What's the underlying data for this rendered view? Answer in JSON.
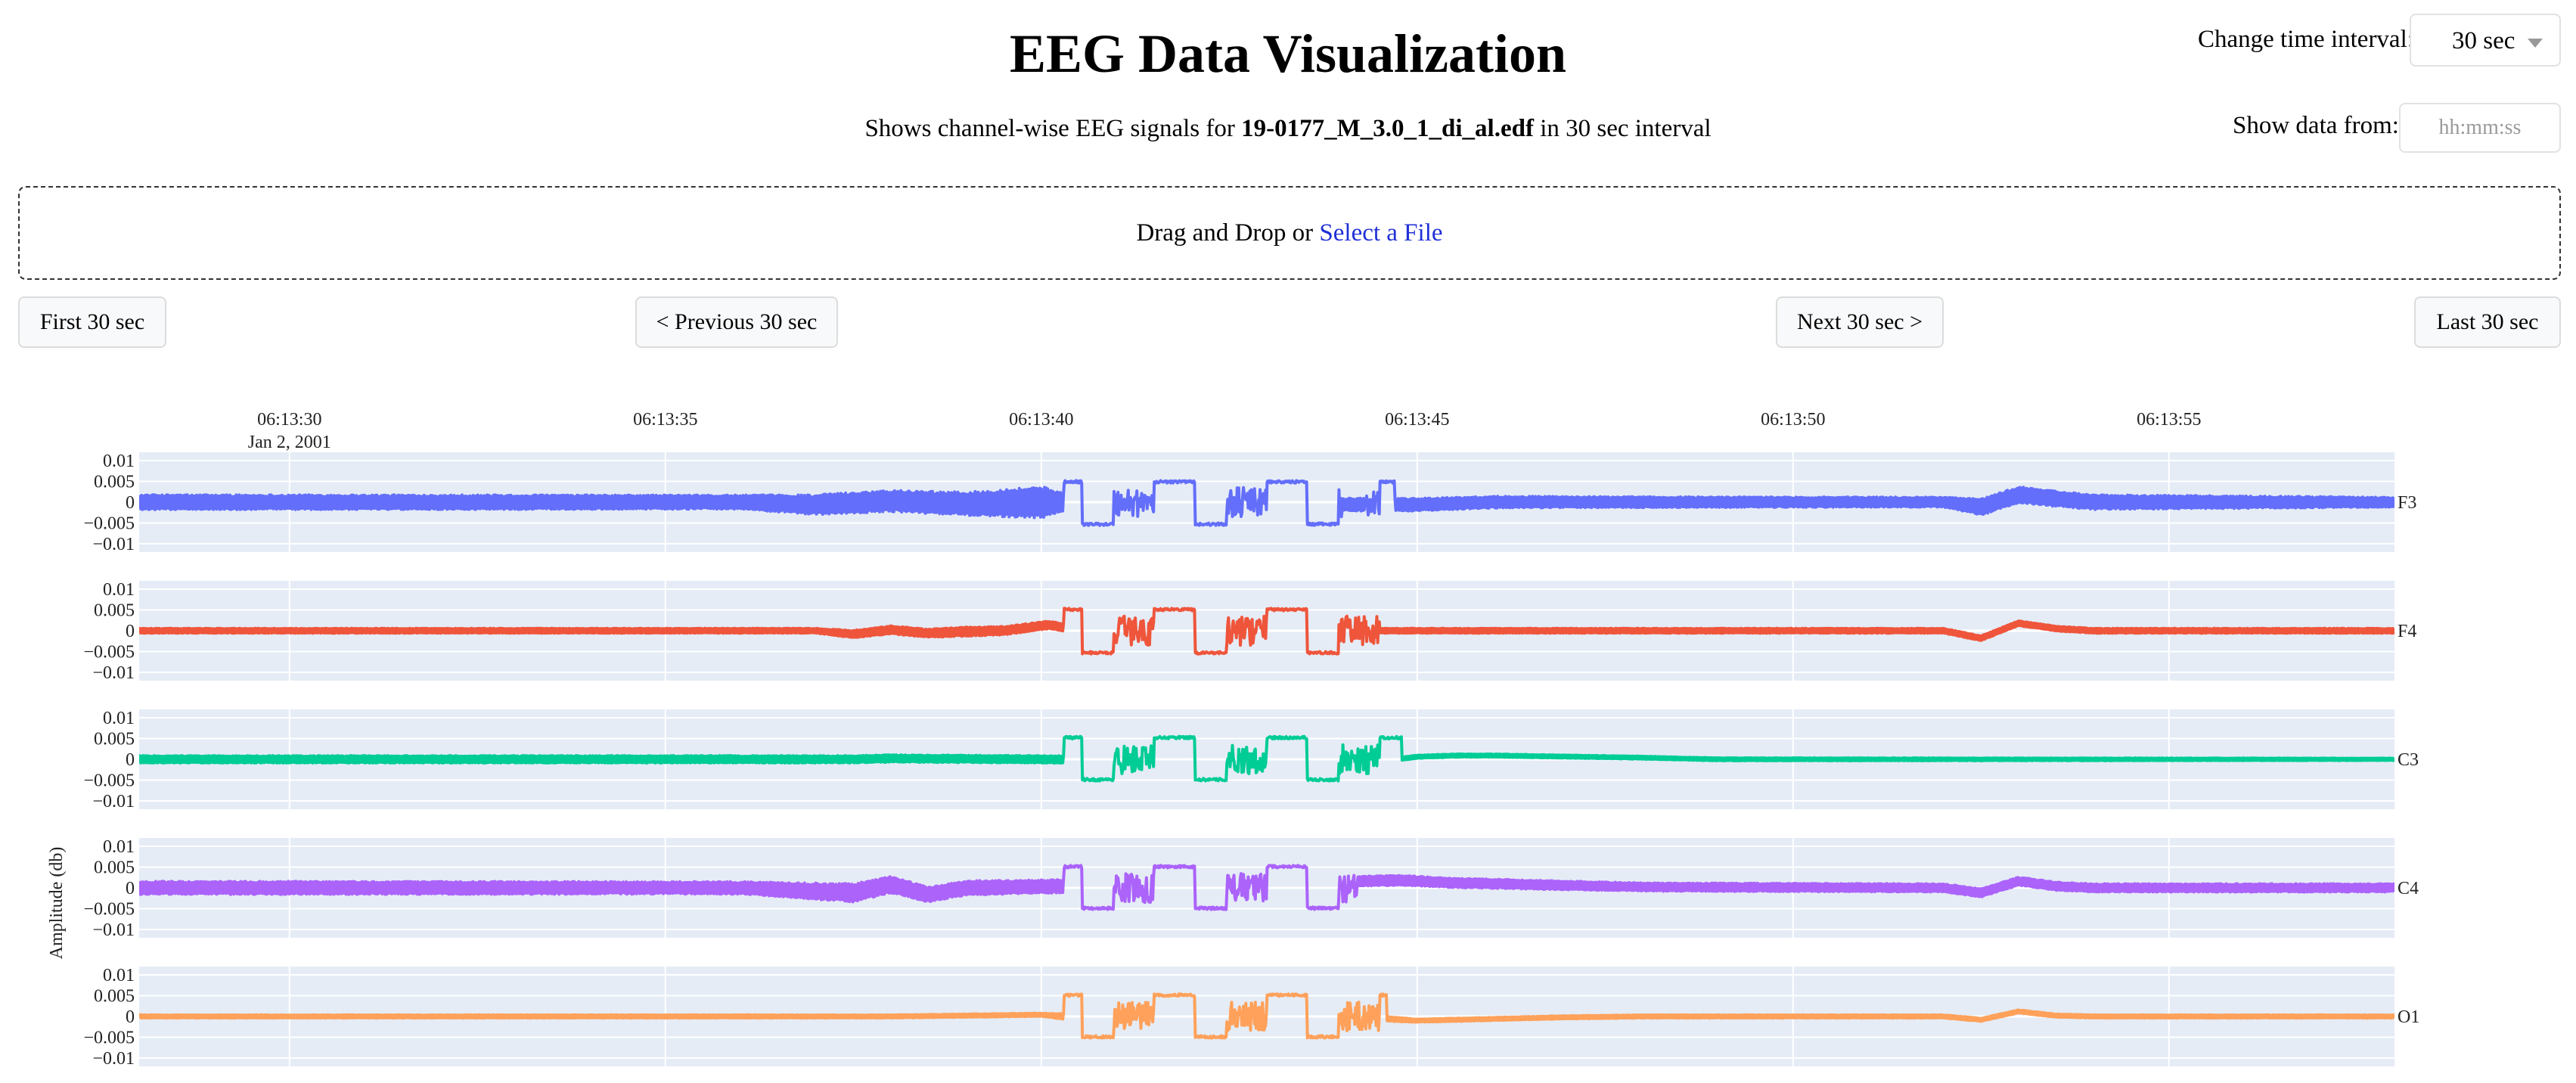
{
  "header": {
    "title": "EEG Data Visualization",
    "subtitle_prefix": "Shows channel-wise EEG signals for ",
    "filename": "19-0177_M_3.0_1_di_al.edf",
    "subtitle_suffix": " in 30 sec interval"
  },
  "controls": {
    "interval_label": "Change time interval:",
    "interval_value": "30 sec",
    "show_from_label": "Show data from:",
    "show_from_placeholder": "hh:mm:ss"
  },
  "upload": {
    "text": "Drag and Drop or ",
    "link": "Select a File"
  },
  "nav": {
    "first": "First 30 sec",
    "previous": "< Previous 30 sec",
    "next": "Next 30 sec >",
    "last": "Last 30 sec"
  },
  "chart_data": {
    "type": "line",
    "ylabel": "Amplitude (db)",
    "x_range": [
      "06:13:28",
      "06:13:58"
    ],
    "x_ticks": [
      "06:13:30",
      "06:13:35",
      "06:13:40",
      "06:13:45",
      "06:13:50",
      "06:13:55"
    ],
    "x_date_label": "Jan 2, 2001",
    "y_range": [
      -0.012,
      0.012
    ],
    "y_ticks": [
      0.01,
      0.005,
      0,
      -0.005,
      -0.01
    ],
    "y_tick_labels": [
      "0.01",
      "0.005",
      "0",
      "−0.005",
      "−0.01"
    ],
    "grid": true,
    "plot_background": "#e5ecf6",
    "series": [
      {
        "name": "F3",
        "color": "#636efa",
        "envelope": [
          [
            0,
            0.0018
          ],
          [
            8,
            0.0017
          ],
          [
            9,
            0.0024
          ],
          [
            11,
            0.0028
          ],
          [
            12,
            0.0038
          ],
          [
            12.3,
            0.0022
          ],
          [
            12.6,
            0.0018
          ],
          [
            17,
            0.0015
          ],
          [
            20,
            0.0013
          ],
          [
            24,
            0.0012
          ],
          [
            24.5,
            0.002
          ],
          [
            30,
            0.0012
          ]
        ],
        "trend": [
          [
            0,
            0
          ],
          [
            8,
            0
          ],
          [
            9,
            -0.0006
          ],
          [
            10,
            0.0003
          ],
          [
            11,
            -0.0004
          ],
          [
            12,
            0
          ],
          [
            12.5,
            0
          ],
          [
            13,
            -0.0022
          ],
          [
            14,
            -0.0018
          ],
          [
            15,
            -0.0008
          ],
          [
            16,
            -0.0006
          ],
          [
            17,
            -0.0006
          ],
          [
            18,
            0
          ],
          [
            24,
            0
          ],
          [
            24.5,
            -0.0012
          ],
          [
            25,
            0.0018
          ],
          [
            25.5,
            0.0008
          ],
          [
            26,
            0
          ],
          [
            30,
            0
          ]
        ],
        "burst": {
          "start": 12.3,
          "end": 16.7,
          "low": -0.0056,
          "high": 0.0052,
          "boundary": 0.0004,
          "gaps": [
            [
              16.0,
              16.3
            ]
          ]
        }
      },
      {
        "name": "F4",
        "color": "#ef553b",
        "envelope": [
          [
            0,
            0.0006
          ],
          [
            9,
            0.0006
          ],
          [
            9.5,
            0.0009
          ],
          [
            11,
            0.0011
          ],
          [
            12.3,
            0.0009
          ],
          [
            13,
            0.0006
          ],
          [
            30,
            0.0006
          ]
        ],
        "trend": [
          [
            0,
            0
          ],
          [
            9,
            0
          ],
          [
            9.5,
            -0.0008
          ],
          [
            10,
            0.0002
          ],
          [
            10.5,
            -0.0006
          ],
          [
            11,
            -0.0002
          ],
          [
            11.5,
            0
          ],
          [
            12.1,
            0.0014
          ],
          [
            12.4,
            0.0005
          ],
          [
            13,
            0
          ],
          [
            24,
            0
          ],
          [
            24.5,
            -0.0018
          ],
          [
            25,
            0.0018
          ],
          [
            25.5,
            0.0005
          ],
          [
            26,
            0
          ],
          [
            30,
            0
          ]
        ],
        "burst": {
          "start": 12.3,
          "end": 16.5,
          "low": -0.0056,
          "high": 0.0054,
          "boundary": 0,
          "gaps": []
        }
      },
      {
        "name": "C3",
        "color": "#00cc96",
        "envelope": [
          [
            0,
            0.0009
          ],
          [
            10,
            0.0009
          ],
          [
            12.3,
            0.0009
          ],
          [
            13,
            0.0005
          ],
          [
            16.5,
            0.0004
          ],
          [
            30,
            0.0003
          ]
        ],
        "trend": [
          [
            0,
            0
          ],
          [
            9.5,
            0
          ],
          [
            10,
            0.0002
          ],
          [
            12,
            0
          ],
          [
            16.6,
            -0.0002
          ],
          [
            17,
            0.0006
          ],
          [
            17.5,
            0.0009
          ],
          [
            18,
            0.0009
          ],
          [
            20,
            0.0004
          ],
          [
            21,
            0
          ],
          [
            30,
            0
          ]
        ],
        "burst": {
          "start": 12.3,
          "end": 16.8,
          "low": -0.0052,
          "high": 0.0055,
          "boundary": 0.0005,
          "gaps": []
        }
      },
      {
        "name": "C4",
        "color": "#ab63fa",
        "envelope": [
          [
            0,
            0.0016
          ],
          [
            8,
            0.0015
          ],
          [
            9.5,
            0.0022
          ],
          [
            10,
            0.002
          ],
          [
            10.5,
            0.0018
          ],
          [
            12.3,
            0.0016
          ],
          [
            13,
            0.0012
          ],
          [
            16.5,
            0.0012
          ],
          [
            20,
            0.001
          ],
          [
            30,
            0.001
          ]
        ],
        "trend": [
          [
            0,
            0
          ],
          [
            8,
            0
          ],
          [
            9.5,
            -0.0012
          ],
          [
            10,
            0.0008
          ],
          [
            10.5,
            -0.0016
          ],
          [
            11,
            0
          ],
          [
            16.8,
            0.0018
          ],
          [
            17.5,
            0.0012
          ],
          [
            20,
            0.0002
          ],
          [
            24,
            0
          ],
          [
            24.5,
            -0.0012
          ],
          [
            25,
            0.0016
          ],
          [
            25.5,
            0.0004
          ],
          [
            26,
            0
          ],
          [
            30,
            0
          ]
        ],
        "burst": {
          "start": 12.3,
          "end": 16.2,
          "low": -0.0052,
          "high": 0.0054,
          "boundary": 0.0006,
          "gaps": []
        }
      },
      {
        "name": "O1",
        "color": "#ffa15a",
        "envelope": [
          [
            0,
            0.0004
          ],
          [
            12,
            0.0004
          ],
          [
            12.3,
            0.0007
          ],
          [
            16.5,
            0.0006
          ],
          [
            17,
            0.0004
          ],
          [
            30,
            0.0004
          ]
        ],
        "trend": [
          [
            0,
            0
          ],
          [
            10,
            0
          ],
          [
            12,
            0.0004
          ],
          [
            12.3,
            0
          ],
          [
            16.5,
            -0.0005
          ],
          [
            17,
            -0.001
          ],
          [
            18,
            -0.0006
          ],
          [
            19,
            -0.0002
          ],
          [
            20,
            0
          ],
          [
            24,
            0
          ],
          [
            24.5,
            -0.0008
          ],
          [
            25,
            0.0012
          ],
          [
            25.5,
            0.0002
          ],
          [
            26,
            0
          ],
          [
            30,
            0
          ]
        ],
        "burst": {
          "start": 12.3,
          "end": 16.6,
          "low": -0.0052,
          "high": 0.0054,
          "boundary": 0,
          "gaps": []
        }
      }
    ]
  }
}
